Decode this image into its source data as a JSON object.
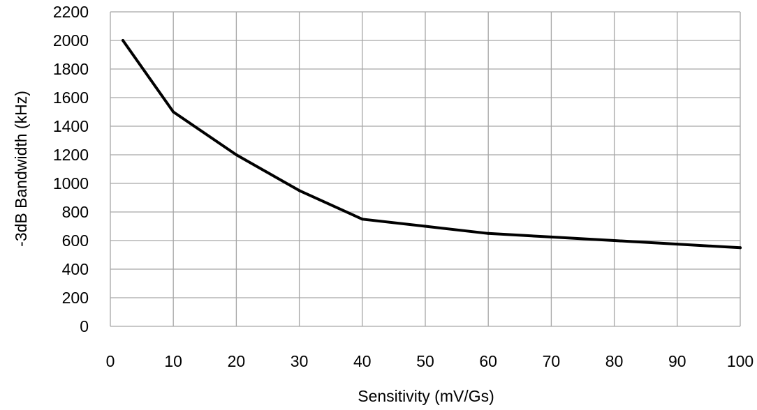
{
  "chart_data": {
    "type": "line",
    "title": "",
    "xlabel": "Sensitivity (mV/Gs)",
    "ylabel": "-3dB Bandwidth (kHz)",
    "xlim": [
      0,
      100
    ],
    "ylim": [
      0,
      2200
    ],
    "x_ticks": [
      0,
      10,
      20,
      30,
      40,
      50,
      60,
      70,
      80,
      90,
      100
    ],
    "y_ticks": [
      0,
      200,
      400,
      600,
      800,
      1000,
      1200,
      1400,
      1600,
      1800,
      2000,
      2200
    ],
    "grid": true,
    "legend": "none",
    "series": [
      {
        "color": "#000000",
        "x": [
          2,
          10,
          20,
          30,
          40,
          50,
          60,
          70,
          80,
          90,
          100
        ],
        "y": [
          2000,
          1500,
          1200,
          950,
          750,
          700,
          650,
          625,
          600,
          575,
          550
        ]
      }
    ]
  }
}
